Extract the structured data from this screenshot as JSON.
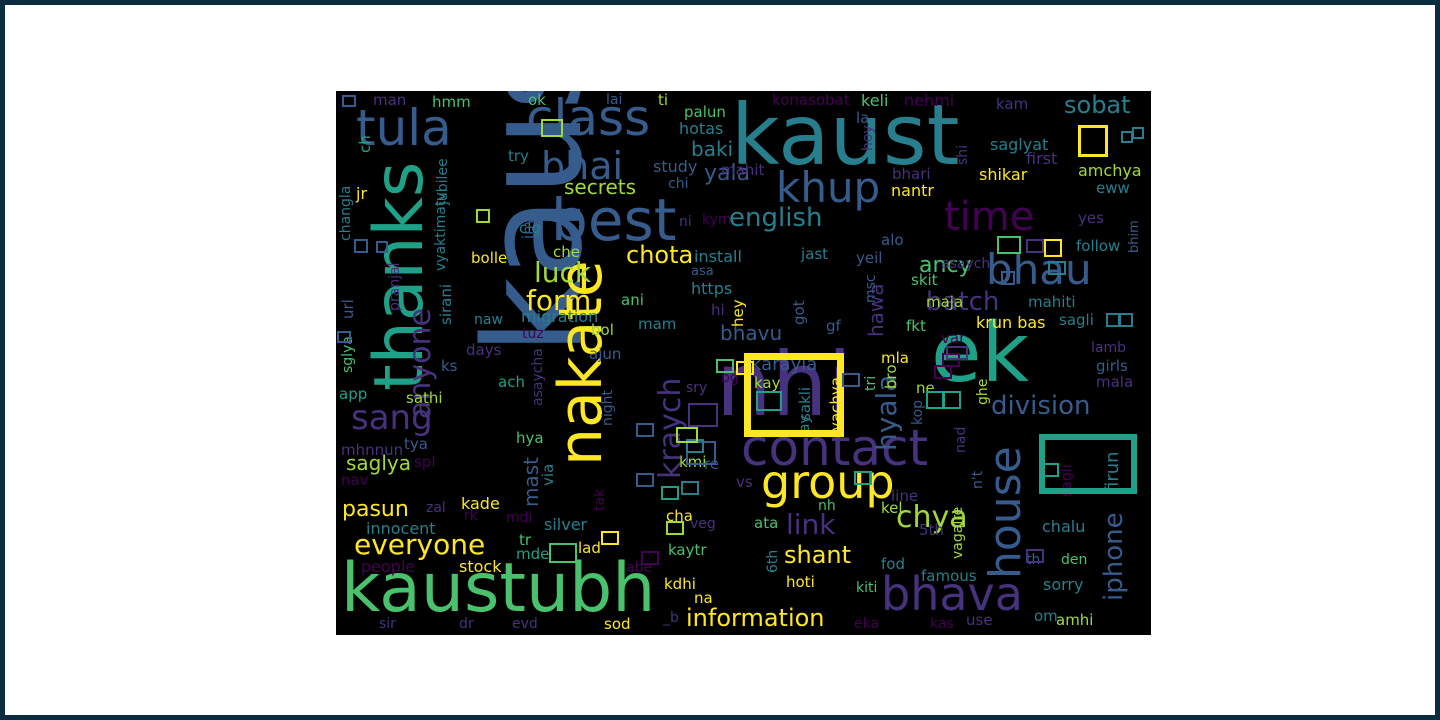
{
  "palette": {
    "c1": "#440154",
    "c2": "#46327e",
    "c3": "#365c8d",
    "c4": "#277f8e",
    "c5": "#1fa187",
    "c6": "#4ac16d",
    "c7": "#a0da39",
    "c8": "#fde725",
    "frame_border": "#0b2b3f",
    "background": "#000000"
  },
  "words": [
    {
      "text": "kaust"
    },
    {
      "text": "kaustya"
    },
    {
      "text": "nhi"
    },
    {
      "text": "ek"
    },
    {
      "text": "kaustubh"
    },
    {
      "text": "thanks"
    },
    {
      "text": "best"
    },
    {
      "text": "class"
    },
    {
      "text": "tula"
    },
    {
      "text": "nakate"
    },
    {
      "text": "contact"
    },
    {
      "text": "bhava"
    },
    {
      "text": "group"
    },
    {
      "text": "house"
    },
    {
      "text": "bhau"
    },
    {
      "text": "khup"
    },
    {
      "text": "time"
    },
    {
      "text": "bhai"
    },
    {
      "text": "sang"
    },
    {
      "text": "division"
    },
    {
      "text": "english"
    },
    {
      "text": "everyone"
    },
    {
      "text": "kraych"
    },
    {
      "text": "hyala"
    },
    {
      "text": "anyone"
    },
    {
      "text": "chya"
    },
    {
      "text": "information"
    },
    {
      "text": "batch"
    },
    {
      "text": "iphone"
    },
    {
      "text": "link"
    },
    {
      "text": "form"
    },
    {
      "text": "luck"
    },
    {
      "text": "chota"
    },
    {
      "text": "shant"
    },
    {
      "text": "sobat"
    },
    {
      "text": "secrets"
    },
    {
      "text": "yala"
    },
    {
      "text": "baki"
    },
    {
      "text": "pasun"
    },
    {
      "text": "saglya"
    },
    {
      "text": "ancy"
    },
    {
      "text": "bhavu"
    },
    {
      "text": "mast"
    },
    {
      "text": "hawa"
    },
    {
      "text": "karayla"
    },
    {
      "text": "chalu"
    },
    {
      "text": "sorry"
    },
    {
      "text": "firun"
    },
    {
      "text": "krun bas"
    },
    {
      "text": "innocent"
    },
    {
      "text": "kade"
    },
    {
      "text": "stock"
    },
    {
      "text": "people"
    },
    {
      "text": "silver"
    },
    {
      "text": "migration"
    },
    {
      "text": "install"
    },
    {
      "text": "https"
    },
    {
      "text": "konasobat"
    },
    {
      "text": "keli"
    },
    {
      "text": "nehmi"
    },
    {
      "text": "saglyat"
    },
    {
      "text": "first"
    },
    {
      "text": "amchya"
    },
    {
      "text": "shikar"
    },
    {
      "text": "nantr"
    },
    {
      "text": "bhari"
    },
    {
      "text": "mahit"
    },
    {
      "text": "study"
    },
    {
      "text": "hotas"
    },
    {
      "text": "palun"
    },
    {
      "text": "try"
    },
    {
      "text": "hmm"
    },
    {
      "text": "man"
    },
    {
      "text": "ok"
    },
    {
      "text": "lai"
    },
    {
      "text": "ti"
    },
    {
      "text": "kam"
    },
    {
      "text": "changla"
    },
    {
      "text": "ch"
    },
    {
      "text": "jr"
    },
    {
      "text": "jubilee"
    },
    {
      "text": "vyaktimatv"
    },
    {
      "text": "clg"
    },
    {
      "text": "jnv"
    },
    {
      "text": "che"
    },
    {
      "text": "bolle"
    },
    {
      "text": "pranjal"
    },
    {
      "text": "url"
    },
    {
      "text": "sglya"
    },
    {
      "text": "sirani"
    },
    {
      "text": "ani"
    },
    {
      "text": "naw"
    },
    {
      "text": "tuz"
    },
    {
      "text": "bol"
    },
    {
      "text": "mam"
    },
    {
      "text": "days"
    },
    {
      "text": "ajun"
    },
    {
      "text": "ks"
    },
    {
      "text": "app"
    },
    {
      "text": "sathi"
    },
    {
      "text": "mhnnun"
    },
    {
      "text": "tya"
    },
    {
      "text": "spl"
    },
    {
      "text": "nav"
    },
    {
      "text": "zal"
    },
    {
      "text": "rk"
    },
    {
      "text": "mdi"
    },
    {
      "text": "tr"
    },
    {
      "text": "mde"
    },
    {
      "text": "asaycha"
    },
    {
      "text": "ach"
    },
    {
      "text": "hya"
    },
    {
      "text": "via"
    },
    {
      "text": "tak"
    },
    {
      "text": "night"
    },
    {
      "text": "kmi"
    },
    {
      "text": "re"
    },
    {
      "text": "vs"
    },
    {
      "text": "cha"
    },
    {
      "text": "veg"
    },
    {
      "text": "kaytr"
    },
    {
      "text": "kdhi"
    },
    {
      "text": "na"
    },
    {
      "text": "sir"
    },
    {
      "text": "dr"
    },
    {
      "text": "evd"
    },
    {
      "text": "sod"
    },
    {
      "text": "_b"
    },
    {
      "text": "lad"
    },
    {
      "text": "abe"
    },
    {
      "text": "hoti"
    },
    {
      "text": "6th"
    },
    {
      "text": "ata"
    },
    {
      "text": "nh"
    },
    {
      "text": "fod"
    },
    {
      "text": "kel"
    },
    {
      "text": "kiti"
    },
    {
      "text": "eka"
    },
    {
      "text": "kas"
    },
    {
      "text": "use"
    },
    {
      "text": "famous"
    },
    {
      "text": "om"
    },
    {
      "text": "amhi"
    },
    {
      "text": "den"
    },
    {
      "text": "th"
    },
    {
      "text": "vagaire"
    },
    {
      "text": "5th"
    },
    {
      "text": "line"
    },
    {
      "text": "n't"
    },
    {
      "text": "nad"
    },
    {
      "text": "sagli"
    },
    {
      "text": "ghe"
    },
    {
      "text": "kop"
    },
    {
      "text": "bro"
    },
    {
      "text": "ne"
    },
    {
      "text": "tri"
    },
    {
      "text": "mla"
    },
    {
      "text": "fkt"
    },
    {
      "text": "var"
    },
    {
      "text": "sagli"
    },
    {
      "text": "lamb"
    },
    {
      "text": "girls"
    },
    {
      "text": "mala"
    },
    {
      "text": "mahiti"
    },
    {
      "text": "skit"
    },
    {
      "text": "asaych"
    },
    {
      "text": "msc"
    },
    {
      "text": "gf"
    },
    {
      "text": "got"
    },
    {
      "text": "jast"
    },
    {
      "text": "yeil"
    },
    {
      "text": "alo"
    },
    {
      "text": "maja"
    },
    {
      "text": "hey"
    },
    {
      "text": "hi"
    },
    {
      "text": "asa"
    },
    {
      "text": "ni"
    },
    {
      "text": "kym"
    },
    {
      "text": "chi"
    },
    {
      "text": "yachya"
    },
    {
      "text": "kay"
    },
    {
      "text": "sakli"
    },
    {
      "text": "lay"
    },
    {
      "text": "bg"
    },
    {
      "text": "sry"
    },
    {
      "text": "shi"
    },
    {
      "text": "hoy"
    },
    {
      "text": "la"
    },
    {
      "text": "eww"
    },
    {
      "text": "yes"
    },
    {
      "text": "follow"
    },
    {
      "text": "bhim"
    }
  ]
}
